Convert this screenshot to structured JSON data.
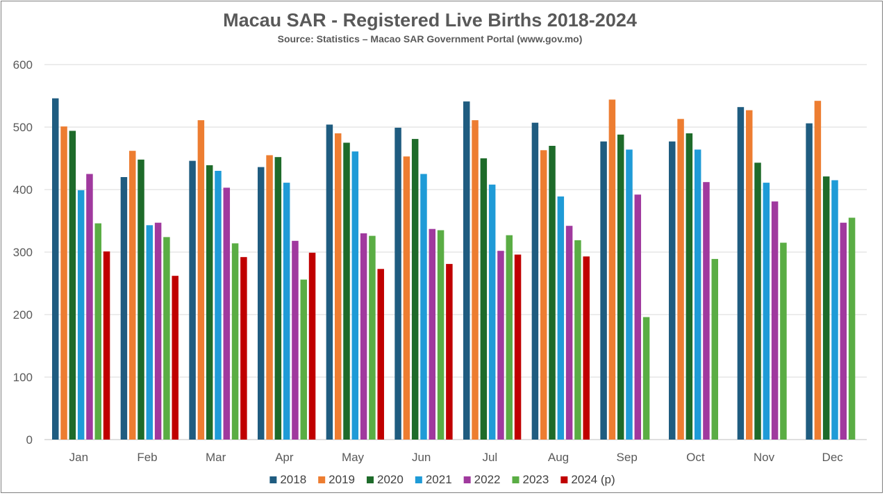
{
  "chart_data": {
    "type": "bar",
    "title": "Macau SAR - Registered Live Births 2018-2024",
    "subtitle": "Source: Statistics – Macao SAR Government Portal (www.gov.mo)",
    "xlabel": "",
    "ylabel": "",
    "ylim": [
      0,
      600
    ],
    "yticks": [
      0,
      100,
      200,
      300,
      400,
      500,
      600
    ],
    "grid": true,
    "legend_position": "bottom",
    "categories": [
      "Jan",
      "Feb",
      "Mar",
      "Apr",
      "May",
      "Jun",
      "Jul",
      "Aug",
      "Sep",
      "Oct",
      "Nov",
      "Dec"
    ],
    "series": [
      {
        "name": "2018",
        "color": "#1f5c80",
        "values": [
          546,
          420,
          446,
          436,
          504,
          499,
          541,
          507,
          477,
          477,
          532,
          506
        ]
      },
      {
        "name": "2019",
        "color": "#ed7d31",
        "values": [
          501,
          462,
          511,
          455,
          490,
          453,
          511,
          463,
          544,
          513,
          527,
          542
        ]
      },
      {
        "name": "2020",
        "color": "#1e6b2a",
        "values": [
          494,
          448,
          439,
          452,
          475,
          481,
          450,
          470,
          488,
          490,
          443,
          421
        ]
      },
      {
        "name": "2021",
        "color": "#1f9bd7",
        "values": [
          399,
          343,
          430,
          411,
          461,
          425,
          408,
          389,
          464,
          464,
          411,
          415
        ]
      },
      {
        "name": "2022",
        "color": "#a0399e",
        "values": [
          425,
          347,
          403,
          318,
          330,
          337,
          302,
          342,
          392,
          412,
          381,
          347
        ]
      },
      {
        "name": "2023",
        "color": "#5aad44",
        "values": [
          346,
          324,
          314,
          256,
          326,
          335,
          327,
          319,
          196,
          289,
          315,
          355
        ]
      },
      {
        "name": "2024 (p)",
        "color": "#c00000",
        "values": [
          301,
          262,
          292,
          299,
          273,
          281,
          296,
          293,
          null,
          null,
          null,
          null
        ]
      }
    ]
  }
}
